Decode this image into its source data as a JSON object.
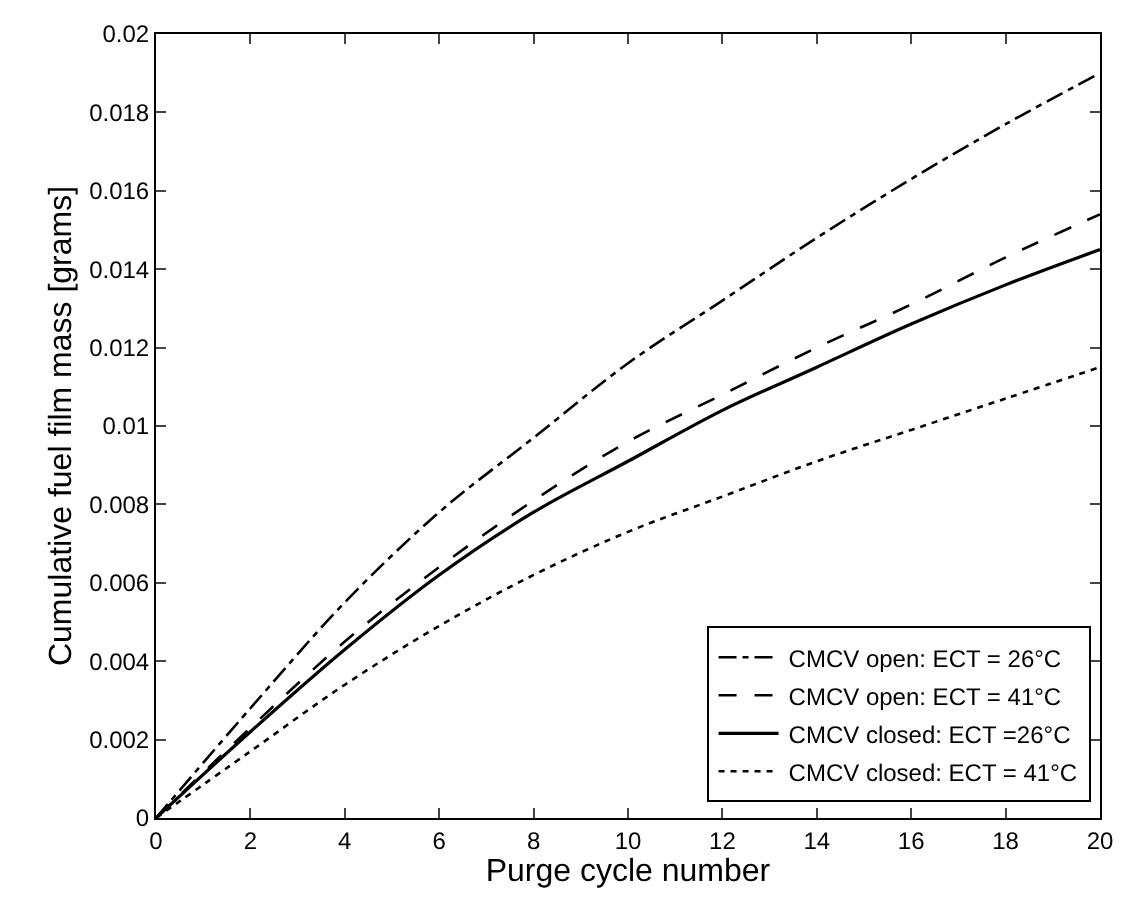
{
  "chart_data": {
    "type": "line",
    "xlabel": "Purge cycle number",
    "ylabel": "Cumulative fuel film mass [grams]",
    "x": [
      0,
      2,
      4,
      6,
      8,
      10,
      12,
      14,
      16,
      18,
      20
    ],
    "series": [
      {
        "name": "CMCV open: ECT = 26°C",
        "color": "#000000",
        "line_style": "dashdot",
        "values": [
          0,
          0.0028,
          0.0055,
          0.0078,
          0.0097,
          0.0116,
          0.0132,
          0.0148,
          0.0163,
          0.0177,
          0.019
        ]
      },
      {
        "name": "CMCV open: ECT = 41°C",
        "color": "#000000",
        "line_style": "dashed",
        "values": [
          0,
          0.0023,
          0.0045,
          0.0064,
          0.0081,
          0.0096,
          0.0108,
          0.012,
          0.0131,
          0.0143,
          0.0154
        ]
      },
      {
        "name": "CMCV closed: ECT =26°C",
        "color": "#000000",
        "line_style": "solid",
        "values": [
          0,
          0.0022,
          0.0043,
          0.0062,
          0.0078,
          0.0091,
          0.0104,
          0.0115,
          0.0126,
          0.0136,
          0.0145
        ]
      },
      {
        "name": "CMCV closed: ECT = 41°C",
        "color": "#000000",
        "line_style": "dotted",
        "values": [
          0,
          0.0017,
          0.0034,
          0.0049,
          0.0062,
          0.0073,
          0.0082,
          0.0091,
          0.0099,
          0.0107,
          0.0115
        ]
      }
    ],
    "xlim": [
      0,
      20
    ],
    "xticks": [
      0,
      2,
      4,
      6,
      8,
      10,
      12,
      14,
      16,
      18,
      20
    ],
    "ylim": [
      0,
      0.02
    ],
    "yticks": [
      0,
      0.002,
      0.004,
      0.006,
      0.008,
      0.01,
      0.012,
      0.014,
      0.016,
      0.018,
      0.02
    ],
    "legend": "bottom right",
    "marker": "none"
  }
}
